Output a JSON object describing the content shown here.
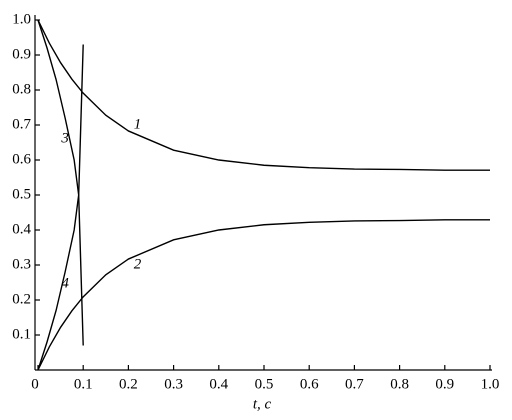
{
  "chart_data": {
    "type": "line",
    "xlabel": "t, c",
    "xlim": [
      0,
      1
    ],
    "ylim": [
      0,
      1
    ],
    "xticks": [
      0,
      0.1,
      0.2,
      0.3,
      0.4,
      0.5,
      0.6,
      0.7,
      0.8,
      0.9,
      {
        "value": 1,
        "label": "1.0"
      }
    ],
    "yticks": [
      0.1,
      0.2,
      0.3,
      0.4,
      0.5,
      0.6,
      0.7,
      0.8,
      0.9,
      {
        "value": 1,
        "label": "1.0"
      }
    ],
    "series": [
      {
        "name": "1",
        "color": "#000000",
        "x": [
          0,
          0.025,
          0.05,
          0.075,
          0.1,
          0.15,
          0.2,
          0.3,
          0.4,
          0.5,
          0.6,
          0.7,
          0.8,
          0.9,
          1
        ],
        "values": [
          1.0,
          0.934,
          0.878,
          0.831,
          0.791,
          0.728,
          0.683,
          0.628,
          0.6,
          0.585,
          0.578,
          0.574,
          0.573,
          0.571,
          0.571
        ]
      },
      {
        "name": "2",
        "color": "#000000",
        "x": [
          0,
          0.025,
          0.05,
          0.075,
          0.1,
          0.15,
          0.2,
          0.3,
          0.4,
          0.5,
          0.6,
          0.7,
          0.8,
          0.9,
          1
        ],
        "values": [
          0,
          0.066,
          0.122,
          0.169,
          0.209,
          0.272,
          0.317,
          0.372,
          0.4,
          0.415,
          0.422,
          0.426,
          0.427,
          0.429,
          0.429
        ]
      },
      {
        "name": "3",
        "color": "#000000",
        "x": [
          0,
          0.02,
          0.04,
          0.06,
          0.08,
          0.09,
          0.1
        ],
        "values": [
          1.0,
          0.92,
          0.83,
          0.72,
          0.6,
          0.5,
          0.07
        ]
      },
      {
        "name": "4",
        "color": "#000000",
        "x": [
          0,
          0.02,
          0.04,
          0.06,
          0.08,
          0.09,
          0.1
        ],
        "values": [
          0,
          0.08,
          0.17,
          0.28,
          0.4,
          0.5,
          0.93
        ]
      }
    ]
  }
}
